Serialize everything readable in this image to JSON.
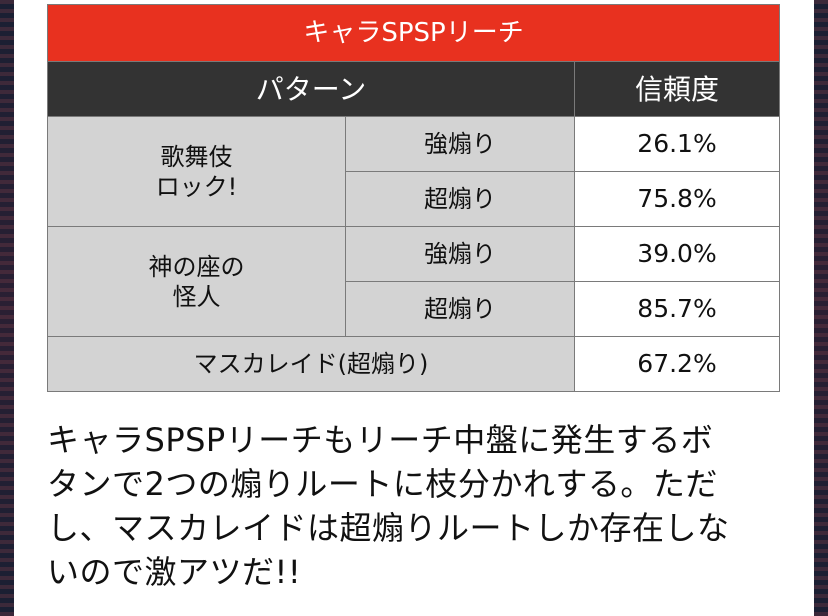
{
  "table": {
    "title": "キャラSPSPリーチ",
    "header_pattern": "パターン",
    "header_reliability": "信頼度",
    "groups": [
      {
        "name_line1": "歌舞伎",
        "name_line2": "ロック!",
        "rows": [
          {
            "type": "強煽り",
            "value": "26.1%"
          },
          {
            "type": "超煽り",
            "value": "75.8%"
          }
        ]
      },
      {
        "name_line1": "神の座の",
        "name_line2": "怪人",
        "rows": [
          {
            "type": "強煽り",
            "value": "39.0%"
          },
          {
            "type": "超煽り",
            "value": "85.7%"
          }
        ]
      }
    ],
    "last_row": {
      "label": "マスカレイド(超煽り)",
      "value": "67.2%"
    }
  },
  "description": {
    "line1": "キャラSPSPリーチもリーチ中盤に発生するボ",
    "line2": "タンで2つの煽りルートに枝分かれする。ただ",
    "line3": "し、マスカレイドは超煽りルートしか存在しな",
    "line4": "いので激アツだ!!"
  }
}
